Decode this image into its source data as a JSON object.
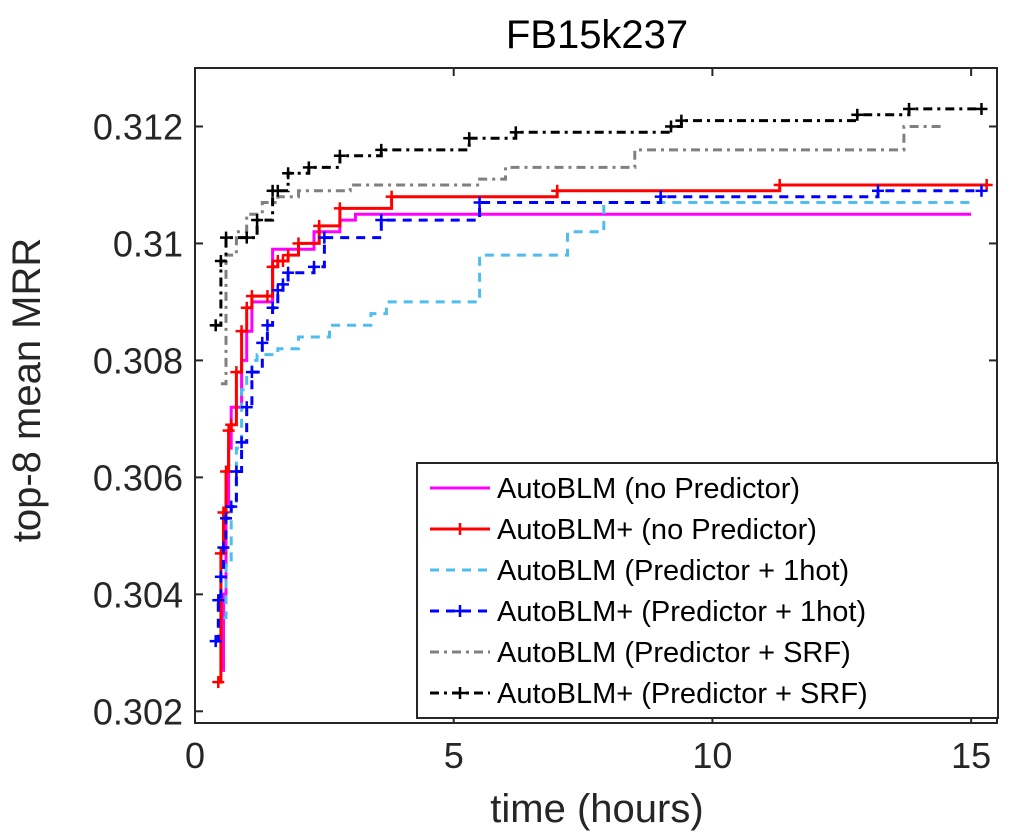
{
  "chart_data": {
    "type": "line",
    "title": "FB15k237",
    "xlabel": "time (hours)",
    "ylabel": "top-8 mean MRR",
    "xlim": [
      0,
      15.5
    ],
    "ylim": [
      0.3018,
      0.313
    ],
    "xticks": [
      0,
      5,
      10,
      15
    ],
    "xtick_labels": [
      "0",
      "5",
      "10",
      "15"
    ],
    "yticks": [
      0.302,
      0.304,
      0.306,
      0.308,
      0.31,
      0.312
    ],
    "ytick_labels": [
      "0.302",
      "0.304",
      "0.306",
      "0.308",
      "0.31",
      "0.312"
    ],
    "grid": false,
    "legend_position": "bottom-right",
    "series": [
      {
        "name": "AutoBLM (no Predictor)",
        "color": "#ff00ff",
        "dash": "solid",
        "marker": "none",
        "x": [
          0.5,
          0.55,
          0.6,
          0.65,
          0.7,
          0.8,
          0.9,
          1.0,
          1.1,
          1.3,
          1.5,
          1.7,
          2.0,
          2.3,
          2.5,
          2.8,
          3.1,
          15.0
        ],
        "y": [
          0.3027,
          0.304,
          0.3055,
          0.3065,
          0.3072,
          0.3072,
          0.308,
          0.3085,
          0.309,
          0.309,
          0.3099,
          0.3099,
          0.3099,
          0.3102,
          0.3102,
          0.3104,
          0.3105,
          0.3105
        ]
      },
      {
        "name": "AutoBLM+ (no Predictor)",
        "color": "#ff0000",
        "dash": "solid",
        "marker": "plus",
        "x": [
          0.45,
          0.5,
          0.55,
          0.6,
          0.65,
          0.7,
          0.8,
          0.9,
          1.0,
          1.1,
          1.4,
          1.5,
          1.6,
          1.7,
          1.8,
          2.0,
          2.4,
          2.8,
          3.8,
          7.0,
          11.3,
          15.3
        ],
        "y": [
          0.3025,
          0.3047,
          0.3054,
          0.3061,
          0.3068,
          0.3069,
          0.3078,
          0.3085,
          0.3089,
          0.3091,
          0.3091,
          0.3096,
          0.3097,
          0.3097,
          0.3098,
          0.31,
          0.3103,
          0.3106,
          0.3108,
          0.3109,
          0.311,
          0.311
        ]
      },
      {
        "name": "AutoBLM (Predictor + 1hot)",
        "color": "#4dbeee",
        "dash": "dashed",
        "marker": "none",
        "x": [
          0.55,
          0.6,
          0.7,
          0.8,
          0.9,
          1.0,
          1.1,
          1.2,
          1.4,
          1.6,
          2.0,
          2.6,
          3.4,
          3.7,
          5.5,
          7.2,
          7.9,
          8.2,
          15.0
        ],
        "y": [
          0.3036,
          0.3045,
          0.3055,
          0.3065,
          0.3075,
          0.3078,
          0.308,
          0.3081,
          0.3081,
          0.3082,
          0.3084,
          0.3086,
          0.3088,
          0.309,
          0.3098,
          0.3102,
          0.3107,
          0.3107,
          0.3107
        ]
      },
      {
        "name": "AutoBLM+ (Predictor + 1hot)",
        "color": "#0000ff",
        "dash": "dashed",
        "marker": "plus",
        "x": [
          0.4,
          0.45,
          0.5,
          0.55,
          0.6,
          0.7,
          0.8,
          0.9,
          1.0,
          1.1,
          1.3,
          1.4,
          1.5,
          1.6,
          1.7,
          1.8,
          2.3,
          2.5,
          3.6,
          5.5,
          9.0,
          13.2,
          15.2
        ],
        "y": [
          0.3032,
          0.3039,
          0.3043,
          0.3048,
          0.3053,
          0.3055,
          0.3061,
          0.3066,
          0.3072,
          0.3078,
          0.3083,
          0.3086,
          0.3089,
          0.3092,
          0.3093,
          0.3095,
          0.3096,
          0.3101,
          0.3104,
          0.3107,
          0.3108,
          0.3109,
          0.3109
        ]
      },
      {
        "name": "AutoBLM (Predictor + SRF)",
        "color": "#808080",
        "dash": "dashdot",
        "marker": "none",
        "x": [
          0.5,
          0.6,
          0.8,
          1.0,
          1.3,
          1.6,
          2.0,
          3.0,
          5.5,
          6.0,
          8.5,
          13.7,
          14.5
        ],
        "y": [
          0.3076,
          0.3098,
          0.3102,
          0.3105,
          0.3107,
          0.3108,
          0.3109,
          0.311,
          0.3111,
          0.3113,
          0.3116,
          0.312,
          0.312
        ]
      },
      {
        "name": "AutoBLM+ (Predictor + SRF)",
        "color": "#000000",
        "dash": "dashdot",
        "marker": "plus",
        "x": [
          0.4,
          0.5,
          0.6,
          1.0,
          1.2,
          1.5,
          1.6,
          1.8,
          2.2,
          2.8,
          3.6,
          5.3,
          6.2,
          9.2,
          9.4,
          12.8,
          13.8,
          15.2
        ],
        "y": [
          0.3086,
          0.3097,
          0.3101,
          0.3101,
          0.3104,
          0.3109,
          0.3109,
          0.3112,
          0.3113,
          0.3115,
          0.3116,
          0.3118,
          0.3119,
          0.312,
          0.3121,
          0.3122,
          0.3123,
          0.3123
        ]
      }
    ]
  }
}
